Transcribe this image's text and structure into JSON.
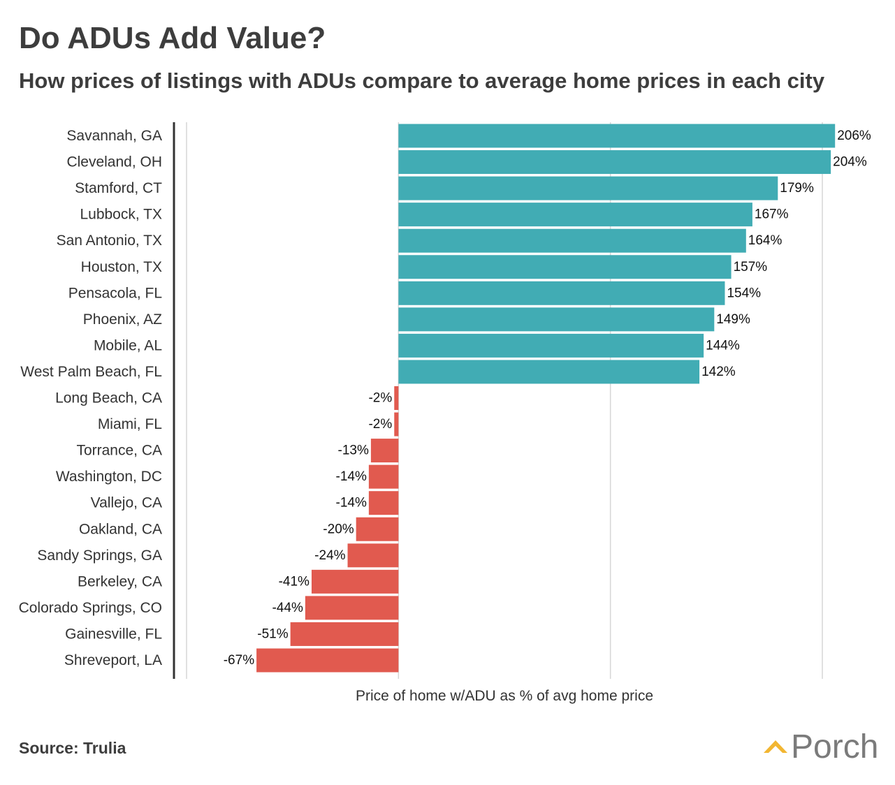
{
  "header": {
    "title": "Do ADUs Add Value?",
    "subtitle": "How prices of listings with ADUs compare to average home prices in each city"
  },
  "footer": {
    "source": "Source: Trulia",
    "logo_text": "Porch",
    "logo_icon": "roof-chevron-icon"
  },
  "colors": {
    "positive": "#41acb4",
    "negative": "#e15a4f",
    "gridline": "#d6d6d6",
    "axis": "#333333",
    "logo_accent": "#f2b632",
    "logo_text": "#7b7b7b"
  },
  "chart_data": {
    "type": "bar",
    "orientation": "horizontal",
    "title": "Do ADUs Add Value?",
    "subtitle": "How prices of listings with ADUs compare to average home prices in each city",
    "xlabel": "Price of home w/ADU as % of avg home price",
    "ylabel": "",
    "xlim": [
      -100,
      200
    ],
    "grid": true,
    "value_suffix": "%",
    "categories": [
      "Savannah, GA",
      "Cleveland, OH",
      "Stamford, CT",
      "Lubbock, TX",
      "San Antonio, TX",
      "Houston, TX",
      "Pensacola, FL",
      "Phoenix, AZ",
      "Mobile, AL",
      "West Palm Beach, FL",
      "Long Beach, CA",
      "Miami, FL",
      "Torrance, CA",
      "Washington, DC",
      "Vallejo, CA",
      "Oakland, CA",
      "Sandy Springs, GA",
      "Berkeley, CA",
      "Colorado Springs, CO",
      "Gainesville, FL",
      "Shreveport, LA"
    ],
    "values": [
      206,
      204,
      179,
      167,
      164,
      157,
      154,
      149,
      144,
      142,
      -2,
      -2,
      -13,
      -14,
      -14,
      -20,
      -24,
      -41,
      -44,
      -51,
      -67
    ],
    "source": "Source: Trulia"
  }
}
